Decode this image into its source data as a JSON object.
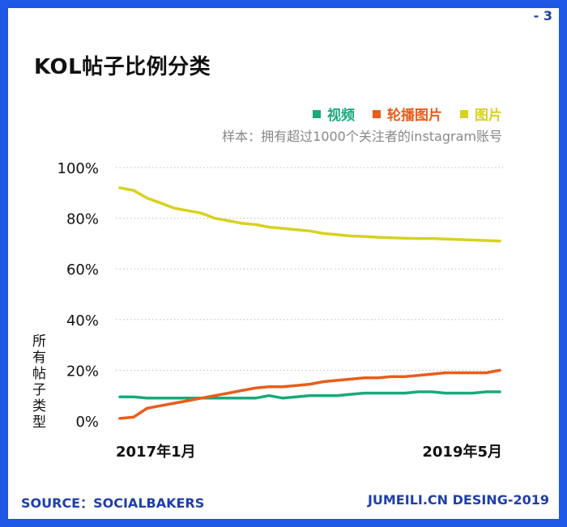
{
  "page_number": "- 3",
  "footer": {
    "source": "SOURCE：SOCIALBAKERS",
    "credit": "JUMEILI.CN DESING-2019"
  },
  "chart_data": {
    "type": "line",
    "title": "KOL帖子比例分类",
    "subtitle": "样本：拥有超过1000个关注者的instagram账号",
    "ylabel": "所有帖子类型",
    "xlabel": "",
    "x_tick_labels": [
      "2017年1月",
      "2019年5月"
    ],
    "y_ticks": [
      "100%",
      "80%",
      "60%",
      "40%",
      "20%",
      "0%"
    ],
    "ylim": [
      0,
      100
    ],
    "grid": true,
    "legend_position": "top-right",
    "x": [
      "2017-01",
      "2017-02",
      "2017-03",
      "2017-04",
      "2017-05",
      "2017-06",
      "2017-07",
      "2017-08",
      "2017-09",
      "2017-10",
      "2017-11",
      "2017-12",
      "2018-01",
      "2018-02",
      "2018-03",
      "2018-04",
      "2018-05",
      "2018-06",
      "2018-07",
      "2018-08",
      "2018-09",
      "2018-10",
      "2018-11",
      "2018-12",
      "2019-01",
      "2019-02",
      "2019-03",
      "2019-04",
      "2019-05"
    ],
    "series": [
      {
        "name": "视频",
        "color": "#19a97b",
        "values": [
          9.5,
          9.5,
          9.0,
          9.0,
          9.0,
          9.0,
          9.0,
          9.0,
          9.0,
          9.0,
          9.0,
          10.0,
          9.0,
          9.5,
          10.0,
          10.0,
          10.0,
          10.5,
          11.0,
          11.0,
          11.0,
          11.0,
          11.5,
          11.5,
          11.0,
          11.0,
          11.0,
          11.5,
          11.5
        ]
      },
      {
        "name": "轮播图片",
        "color": "#e85d1a",
        "values": [
          1.0,
          1.5,
          5.0,
          6.0,
          7.0,
          8.0,
          9.0,
          10.0,
          11.0,
          12.0,
          13.0,
          13.5,
          13.5,
          14.0,
          14.5,
          15.5,
          16.0,
          16.5,
          17.0,
          17.0,
          17.5,
          17.5,
          18.0,
          18.5,
          19.0,
          19.0,
          19.0,
          19.0,
          20.0
        ]
      },
      {
        "name": "图片",
        "color": "#d7d21f",
        "values": [
          92.0,
          91.0,
          88.0,
          86.0,
          84.0,
          83.0,
          82.0,
          80.0,
          79.0,
          78.0,
          77.5,
          76.5,
          76.0,
          75.5,
          75.0,
          74.0,
          73.5,
          73.0,
          72.8,
          72.5,
          72.3,
          72.1,
          72.0,
          72.0,
          71.8,
          71.6,
          71.4,
          71.2,
          71.0
        ]
      }
    ]
  }
}
